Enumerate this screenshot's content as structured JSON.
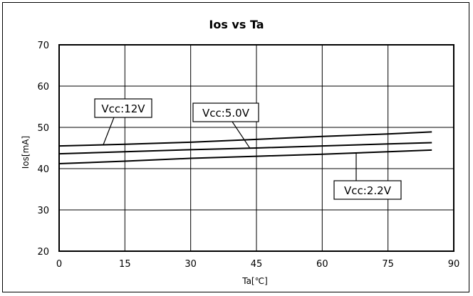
{
  "chart_data": {
    "type": "line",
    "title": "Ios vs Ta",
    "xlabel": "Ta[℃]",
    "ylabel": "Ios[mA]",
    "xlim": [
      0,
      90
    ],
    "ylim": [
      20,
      70
    ],
    "xticks": [
      0,
      15,
      30,
      45,
      60,
      75,
      90
    ],
    "yticks": [
      20,
      30,
      40,
      50,
      60,
      70
    ],
    "grid": true,
    "legend": "callout labels",
    "series": [
      {
        "name": "Vcc:12V",
        "color": "#000000",
        "x": [
          0,
          15,
          30,
          45,
          60,
          75,
          85
        ],
        "y": [
          45.5,
          45.9,
          46.4,
          47.1,
          47.8,
          48.4,
          48.9
        ]
      },
      {
        "name": "Vcc:5.0V",
        "color": "#000000",
        "x": [
          0,
          15,
          30,
          45,
          60,
          75,
          85
        ],
        "y": [
          43.6,
          44.1,
          44.6,
          45.0,
          45.5,
          46.0,
          46.3
        ]
      },
      {
        "name": "Vcc:2.2V",
        "color": "#000000",
        "x": [
          0,
          15,
          30,
          45,
          60,
          75,
          85
        ],
        "y": [
          41.2,
          41.8,
          42.5,
          43.0,
          43.5,
          44.1,
          44.5
        ]
      }
    ],
    "annotations": [
      {
        "text": "Vcc:12V",
        "series": 0
      },
      {
        "text": "Vcc:5.0V",
        "series": 1
      },
      {
        "text": "Vcc:2.2V",
        "series": 2
      }
    ]
  }
}
